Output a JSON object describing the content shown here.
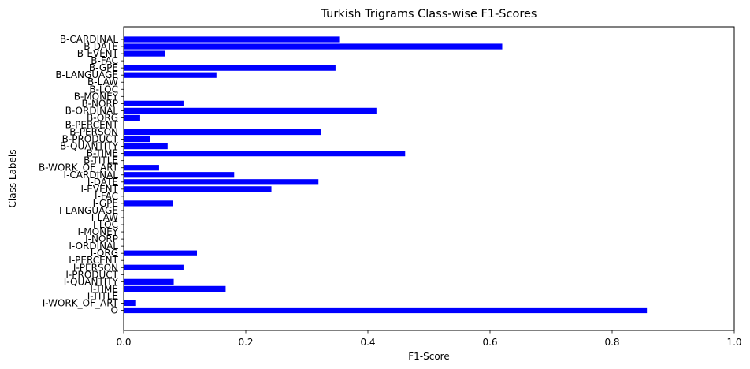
{
  "chart_data": {
    "type": "bar",
    "orientation": "horizontal",
    "title": "Turkish Trigrams Class-wise F1-Scores",
    "xlabel": "F1-Score",
    "ylabel": "Class Labels",
    "xlim": [
      0,
      1
    ],
    "xticks": [
      "0.0",
      "0.2",
      "0.4",
      "0.6",
      "0.8",
      "1.0"
    ],
    "grid": false,
    "legend": "none",
    "bar_color": "#0000ff",
    "categories": [
      "B-CARDINAL",
      "B-DATE",
      "B-EVENT",
      "B-FAC",
      "B-GPE",
      "B-LANGUAGE",
      "B-LAW",
      "B-LOC",
      "B-MONEY",
      "B-NORP",
      "B-ORDINAL",
      "B-ORG",
      "B-PERCENT",
      "B-PERSON",
      "B-PRODUCT",
      "B-QUANTITY",
      "B-TIME",
      "B-TITLE",
      "B-WORK_OF_ART",
      "I-CARDINAL",
      "I-DATE",
      "I-EVENT",
      "I-FAC",
      "I-GPE",
      "I-LANGUAGE",
      "I-LAW",
      "I-LOC",
      "I-MONEY",
      "I-NORP",
      "I-ORDINAL",
      "I-ORG",
      "I-PERCENT",
      "I-PERSON",
      "I-PRODUCT",
      "I-QUANTITY",
      "I-TIME",
      "I-TITLE",
      "I-WORK_OF_ART",
      "O"
    ],
    "values": [
      0.353,
      0.62,
      0.068,
      0,
      0.347,
      0.152,
      0,
      0,
      0,
      0.098,
      0.414,
      0.027,
      0,
      0.323,
      0.043,
      0.072,
      0.461,
      0,
      0.058,
      0.181,
      0.319,
      0.242,
      0,
      0.08,
      0,
      0,
      0,
      0,
      0,
      0,
      0.12,
      0,
      0.098,
      0,
      0.082,
      0.167,
      0,
      0.019,
      0.857
    ]
  }
}
